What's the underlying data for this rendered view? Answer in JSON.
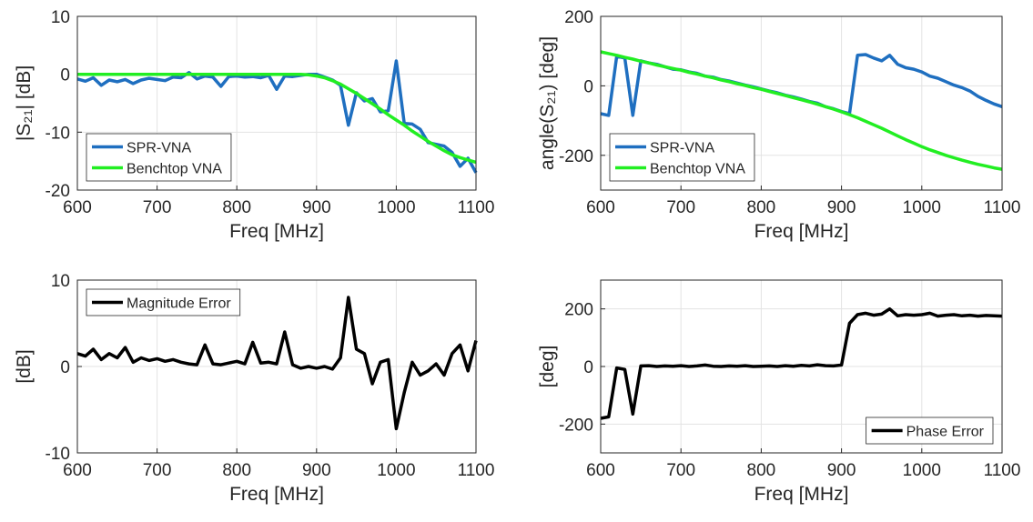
{
  "chart_data": [
    {
      "type": "line",
      "xlabel": "Freq [MHz]",
      "ylabel": "|S₂₁|  [dB]",
      "x": [
        600,
        610,
        620,
        630,
        640,
        650,
        660,
        670,
        680,
        690,
        700,
        710,
        720,
        730,
        740,
        750,
        760,
        770,
        780,
        790,
        800,
        810,
        820,
        830,
        840,
        850,
        860,
        870,
        880,
        890,
        900,
        910,
        920,
        930,
        940,
        950,
        960,
        970,
        980,
        990,
        1000,
        1010,
        1020,
        1030,
        1040,
        1050,
        1060,
        1070,
        1080,
        1090,
        1100
      ],
      "xlim": [
        600,
        1100
      ],
      "xticks": [
        600,
        700,
        800,
        900,
        1000,
        1100
      ],
      "ylim": [
        -20,
        10
      ],
      "yticks": [
        -20,
        -10,
        0,
        10
      ],
      "grid": true,
      "legend": "lower left",
      "series": [
        {
          "name": "SPR-VNA",
          "color": "#1f6fc0",
          "values": [
            -0.8,
            -1.2,
            -0.6,
            -1.9,
            -1,
            -1.3,
            -0.9,
            -1.6,
            -1,
            -0.7,
            -0.9,
            -1.1,
            -0.5,
            -0.6,
            0.3,
            -0.8,
            -0.3,
            -0.5,
            -2.1,
            -0.4,
            -0.3,
            -0.5,
            -0.4,
            -0.6,
            -0.2,
            -2.6,
            -0.3,
            -0.4,
            -0.2,
            0,
            0,
            -0.5,
            -1,
            -1.9,
            -8.8,
            -3.2,
            -4.6,
            -4.2,
            -6.5,
            -6.3,
            2.3,
            -8.5,
            -8.6,
            -9.5,
            -11.8,
            -12.1,
            -12.4,
            -13.5,
            -15.9,
            -14.5,
            -17
          ]
        },
        {
          "name": "Benchtop VNA",
          "color": "#22ee22",
          "values": [
            0,
            0,
            0,
            0,
            0,
            0,
            0,
            0,
            0,
            0,
            0,
            0,
            0,
            0,
            0,
            0,
            0,
            0,
            0,
            0,
            0,
            0,
            0,
            0,
            0,
            0,
            0,
            0,
            0,
            -0.1,
            -0.3,
            -0.6,
            -1.1,
            -1.7,
            -2.5,
            -3.3,
            -4.2,
            -5.1,
            -6,
            -7,
            -7.9,
            -8.8,
            -9.8,
            -10.7,
            -11.6,
            -12.4,
            -13.2,
            -13.9,
            -14.4,
            -14.8,
            -15.2
          ]
        }
      ]
    },
    {
      "type": "line",
      "xlabel": "Freq [MHz]",
      "ylabel": "angle(S₂₁)  [deg]",
      "x": [
        600,
        610,
        620,
        630,
        640,
        650,
        660,
        670,
        680,
        690,
        700,
        710,
        720,
        730,
        740,
        750,
        760,
        770,
        780,
        790,
        800,
        810,
        820,
        830,
        840,
        850,
        860,
        870,
        880,
        890,
        900,
        910,
        920,
        930,
        940,
        950,
        960,
        970,
        980,
        990,
        1000,
        1010,
        1020,
        1030,
        1040,
        1050,
        1060,
        1070,
        1080,
        1090,
        1100
      ],
      "xlim": [
        600,
        1100
      ],
      "xticks": [
        600,
        700,
        800,
        900,
        1000,
        1100
      ],
      "ylim": [
        -300,
        200
      ],
      "yticks": [
        -200,
        0,
        200
      ],
      "grid": true,
      "legend": "lower left",
      "series": [
        {
          "name": "SPR-VNA",
          "color": "#1f6fc0",
          "values": [
            -80,
            -85,
            85,
            80,
            -85,
            72,
            66,
            62,
            55,
            48,
            46,
            40,
            36,
            28,
            25,
            18,
            14,
            8,
            2,
            -3,
            -9,
            -15,
            -20,
            -27,
            -32,
            -38,
            -45,
            -50,
            -60,
            -66,
            -74,
            -80,
            88,
            90,
            80,
            72,
            88,
            62,
            52,
            48,
            40,
            28,
            22,
            12,
            2,
            -5,
            -15,
            -30,
            -42,
            -52,
            -60
          ]
        },
        {
          "name": "Benchtop VNA",
          "color": "#22ee22",
          "values": [
            98,
            93,
            88,
            82,
            77,
            71,
            66,
            60,
            55,
            50,
            45,
            39,
            34,
            28,
            23,
            17,
            12,
            6,
            1,
            -5,
            -10,
            -16,
            -22,
            -28,
            -34,
            -40,
            -46,
            -53,
            -60,
            -67,
            -75,
            -83,
            -92,
            -102,
            -112,
            -122,
            -133,
            -144,
            -155,
            -165,
            -175,
            -184,
            -192,
            -200,
            -207,
            -214,
            -220,
            -226,
            -231,
            -236,
            -240
          ]
        }
      ]
    },
    {
      "type": "line",
      "xlabel": "Freq [MHz]",
      "ylabel": "[dB]",
      "x": [
        600,
        610,
        620,
        630,
        640,
        650,
        660,
        670,
        680,
        690,
        700,
        710,
        720,
        730,
        740,
        750,
        760,
        770,
        780,
        790,
        800,
        810,
        820,
        830,
        840,
        850,
        860,
        870,
        880,
        890,
        900,
        910,
        920,
        930,
        940,
        950,
        960,
        970,
        980,
        990,
        1000,
        1010,
        1020,
        1030,
        1040,
        1050,
        1060,
        1070,
        1080,
        1090,
        1100
      ],
      "xlim": [
        600,
        1100
      ],
      "xticks": [
        600,
        700,
        800,
        900,
        1000,
        1100
      ],
      "ylim": [
        -10,
        10
      ],
      "yticks": [
        -10,
        0,
        10
      ],
      "grid": true,
      "legend": "upper left",
      "series": [
        {
          "name": "Magnitude Error",
          "color": "#000000",
          "values": [
            1.5,
            1.2,
            2,
            0.8,
            1.5,
            1,
            2.2,
            0.5,
            1,
            0.7,
            0.9,
            0.6,
            0.8,
            0.5,
            0.3,
            0.2,
            2.5,
            0.3,
            0.2,
            0.4,
            0.6,
            0.3,
            2.8,
            0.4,
            0.5,
            0.3,
            4,
            0.2,
            -0.2,
            0,
            -0.2,
            0,
            -0.3,
            1,
            8,
            2,
            1.5,
            -2,
            0.5,
            0.8,
            -7.2,
            -3,
            0.5,
            -1,
            -0.5,
            0.3,
            -1,
            1.5,
            2.5,
            -0.5,
            3
          ]
        }
      ]
    },
    {
      "type": "line",
      "xlabel": "Freq [MHz]",
      "ylabel": "[deg]",
      "x": [
        600,
        610,
        620,
        630,
        640,
        650,
        660,
        670,
        680,
        690,
        700,
        710,
        720,
        730,
        740,
        750,
        760,
        770,
        780,
        790,
        800,
        810,
        820,
        830,
        840,
        850,
        860,
        870,
        880,
        890,
        900,
        910,
        920,
        930,
        940,
        950,
        960,
        970,
        980,
        990,
        1000,
        1010,
        1020,
        1030,
        1040,
        1050,
        1060,
        1070,
        1080,
        1090,
        1100
      ],
      "xlim": [
        600,
        1100
      ],
      "xticks": [
        600,
        700,
        800,
        900,
        1000,
        1100
      ],
      "ylim": [
        -300,
        300
      ],
      "yticks": [
        -200,
        0,
        200
      ],
      "grid": true,
      "legend": "lower right",
      "series": [
        {
          "name": "Phase Error",
          "color": "#000000",
          "values": [
            -180,
            -175,
            -5,
            -10,
            -165,
            2,
            3,
            0,
            2,
            1,
            3,
            0,
            2,
            5,
            1,
            0,
            2,
            1,
            3,
            0,
            1,
            2,
            0,
            3,
            1,
            4,
            2,
            6,
            3,
            2,
            5,
            150,
            180,
            185,
            178,
            182,
            200,
            176,
            180,
            178,
            180,
            185,
            175,
            178,
            180,
            176,
            178,
            175,
            177,
            176,
            175
          ]
        }
      ]
    }
  ]
}
